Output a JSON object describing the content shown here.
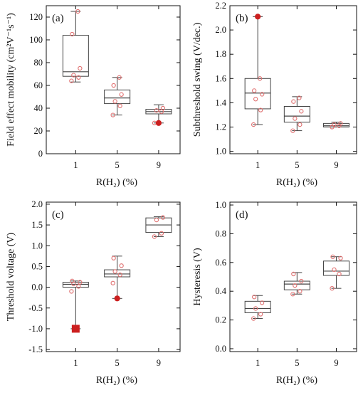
{
  "chart_data": [
    {
      "type": "box",
      "panel_label": "(a)",
      "ylabel": "Field effect mobility (cm²V⁻¹s⁻¹)",
      "xlabel": "R(H₂) (%)",
      "categories": [
        "1",
        "5",
        "9"
      ],
      "ylim": [
        0,
        130
      ],
      "yticks": [
        0,
        20,
        40,
        60,
        80,
        100,
        120
      ],
      "ytick_labels": [
        "0",
        "20",
        "40",
        "60",
        "80",
        "100",
        "120"
      ],
      "boxes": [
        {
          "min": 63,
          "q1": 68,
          "median": 72,
          "q3": 104,
          "max": 125,
          "points": [
            64,
            67,
            69,
            75,
            105,
            125
          ],
          "outliers": []
        },
        {
          "min": 34,
          "q1": 44,
          "median": 49,
          "q3": 56,
          "max": 67,
          "points": [
            34,
            42,
            46,
            52,
            60,
            67
          ],
          "outliers": []
        },
        {
          "min": 27,
          "q1": 35,
          "median": 37,
          "q3": 39,
          "max": 43,
          "points": [
            27,
            37,
            38,
            40
          ],
          "outliers": [
            27
          ]
        }
      ]
    },
    {
      "type": "box",
      "panel_label": "(b)",
      "ylabel": "Subthreshold swing (V/dec.)",
      "xlabel": "R(H₂) (%)",
      "categories": [
        "1",
        "5",
        "9"
      ],
      "ylim": [
        0.98,
        2.2
      ],
      "yticks": [
        1.0,
        1.2,
        1.4,
        1.6,
        1.8,
        2.0,
        2.2
      ],
      "ytick_labels": [
        "1.0",
        "1.2",
        "1.4",
        "1.6",
        "1.8",
        "2.0",
        "2.2"
      ],
      "boxes": [
        {
          "min": 1.22,
          "q1": 1.35,
          "median": 1.48,
          "q3": 1.6,
          "max": 2.11,
          "points": [
            1.22,
            1.34,
            1.43,
            1.47,
            1.5,
            1.6
          ],
          "outliers": [
            2.11
          ]
        },
        {
          "min": 1.17,
          "q1": 1.24,
          "median": 1.29,
          "q3": 1.37,
          "max": 1.45,
          "points": [
            1.17,
            1.22,
            1.27,
            1.33,
            1.41,
            1.44
          ],
          "outliers": []
        },
        {
          "min": 1.2,
          "q1": 1.2,
          "median": 1.21,
          "q3": 1.23,
          "max": 1.24,
          "points": [
            1.2,
            1.21,
            1.22,
            1.23
          ],
          "outliers": []
        }
      ]
    },
    {
      "type": "box",
      "panel_label": "(c)",
      "ylabel": "Threshold voltage (V)",
      "xlabel": "R(H₂) (%)",
      "categories": [
        "1",
        "5",
        "9"
      ],
      "ylim": [
        -1.55,
        2.05
      ],
      "yticks": [
        -1.5,
        -1.0,
        -0.5,
        0.0,
        0.5,
        1.0,
        1.5,
        2.0
      ],
      "ytick_labels": [
        "-1.5",
        "-1.0",
        "-0.5",
        "0.0",
        "0.5",
        "1.0",
        "1.5",
        "2.0"
      ],
      "boxes": [
        {
          "min": -1.0,
          "q1": 0.0,
          "median": 0.07,
          "q3": 0.12,
          "max": 0.15,
          "points": [
            -0.1,
            0.02,
            0.08,
            0.12,
            0.15
          ],
          "outliers": [
            -1.0
          ],
          "outlier_marker": "square"
        },
        {
          "min": -0.27,
          "q1": 0.25,
          "median": 0.32,
          "q3": 0.42,
          "max": 0.75,
          "points": [
            0.1,
            0.3,
            0.38,
            0.52,
            0.7
          ],
          "outliers": [
            -0.27
          ]
        },
        {
          "min": 1.22,
          "q1": 1.32,
          "median": 1.5,
          "q3": 1.67,
          "max": 1.7,
          "points": [
            1.22,
            1.3,
            1.62,
            1.68
          ],
          "outliers": []
        }
      ]
    },
    {
      "type": "box",
      "panel_label": "(d)",
      "ylabel": "Hysteresis (V)",
      "xlabel": "R(H₂) (%)",
      "categories": [
        "1",
        "5",
        "9"
      ],
      "ylim": [
        -0.02,
        1.02
      ],
      "yticks": [
        0.0,
        0.2,
        0.4,
        0.6,
        0.8,
        1.0
      ],
      "ytick_labels": [
        "0.0",
        "0.2",
        "0.4",
        "0.6",
        "0.8",
        "1.0"
      ],
      "boxes": [
        {
          "min": 0.21,
          "q1": 0.25,
          "median": 0.28,
          "q3": 0.33,
          "max": 0.37,
          "points": [
            0.21,
            0.24,
            0.28,
            0.32,
            0.36
          ],
          "outliers": []
        },
        {
          "min": 0.38,
          "q1": 0.41,
          "median": 0.45,
          "q3": 0.47,
          "max": 0.53,
          "points": [
            0.38,
            0.4,
            0.44,
            0.47,
            0.52
          ],
          "outliers": []
        },
        {
          "min": 0.42,
          "q1": 0.51,
          "median": 0.54,
          "q3": 0.61,
          "max": 0.64,
          "points": [
            0.42,
            0.52,
            0.55,
            0.63,
            0.64
          ],
          "outliers": []
        }
      ]
    }
  ]
}
